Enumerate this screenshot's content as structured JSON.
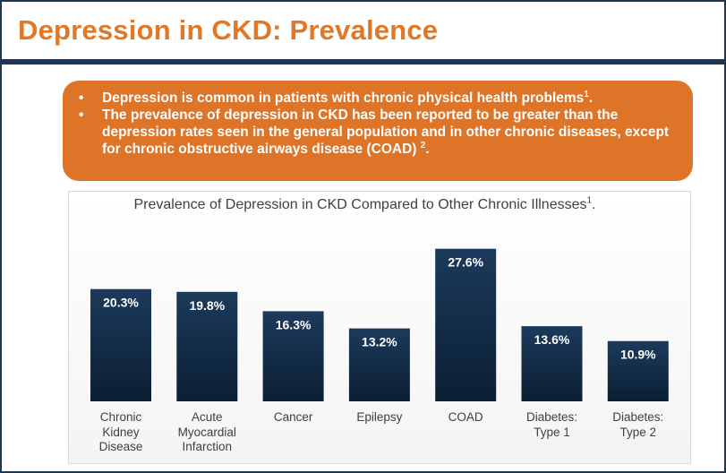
{
  "slide": {
    "title": "Depression in CKD: Prevalence",
    "bullets": [
      {
        "text": "Depression is common in patients with chronic physical health problems",
        "ref": "1",
        "tail": "."
      },
      {
        "text": "The prevalence of depression in CKD has been reported to be greater than the depression rates seen in  the general population and in other chronic diseases, except for chronic obstructive airways disease (COAD)",
        "ref": "2",
        "tail": "."
      }
    ]
  },
  "chart_data": {
    "type": "bar",
    "title": "Prevalence of Depression in CKD Compared to Other Chronic Illnesses",
    "title_ref": "1",
    "title_tail": ".",
    "categories": [
      "Chronic Kidney Disease",
      "Acute Myocardial Infarction",
      "Cancer",
      "Epilepsy",
      "COAD",
      "Diabetes: Type 1",
      "Diabetes: Type 2"
    ],
    "category_lines": [
      [
        "Chronic",
        "Kidney",
        "Disease"
      ],
      [
        "Acute",
        "Myocardial",
        "Infarction"
      ],
      [
        "Cancer"
      ],
      [
        "Epilepsy"
      ],
      [
        "COAD"
      ],
      [
        "Diabetes:",
        "Type 1"
      ],
      [
        "Diabetes:",
        "Type 2"
      ]
    ],
    "values": [
      20.3,
      19.8,
      16.3,
      13.2,
      27.6,
      13.6,
      10.9
    ],
    "value_labels": [
      "20.3%",
      "19.8%",
      "16.3%",
      "13.2%",
      "27.6%",
      "13.6%",
      "10.9%"
    ],
    "unit": "%",
    "ylim": [
      0,
      28
    ],
    "xlabel": "",
    "ylabel": "",
    "grid": false,
    "legend": "none",
    "colors": {
      "bar_top": "#1c3a5c",
      "bar_bottom": "#0b1f33",
      "label": "#ffffff"
    }
  },
  "colors": {
    "title": "#e07828",
    "accent_bar": "#1f3550",
    "callout": "#dd7427"
  }
}
